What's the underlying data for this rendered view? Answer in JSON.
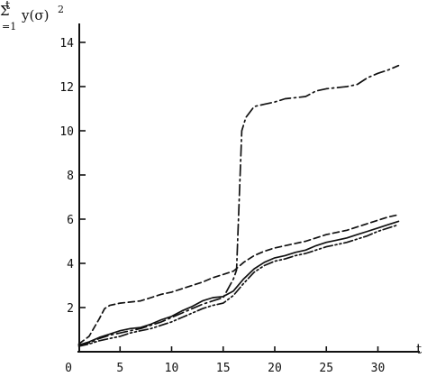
{
  "chart_data": {
    "type": "line",
    "ylabel_prefix": "Σ",
    "ylabel_sup": "t",
    "ylabel_sub": "=1",
    "ylabel_main": "y(σ)",
    "ylabel_exp": "2",
    "xlabel": "t",
    "xlim": [
      0,
      33
    ],
    "ylim": [
      0,
      14.8
    ],
    "xticks": [
      0,
      5,
      10,
      15,
      20,
      25,
      30
    ],
    "yticks": [
      2,
      4,
      6,
      8,
      10,
      12,
      14
    ],
    "grid": false,
    "series": [
      {
        "dash": "solid",
        "x": [
          1,
          2,
          3,
          4,
          5,
          6,
          7,
          8,
          9,
          10,
          11,
          12,
          13,
          14,
          15,
          16,
          17,
          18,
          19,
          20,
          21,
          22,
          23,
          24,
          25,
          26,
          27,
          28,
          29,
          30,
          31,
          32
        ],
        "y": [
          0.3,
          0.45,
          0.65,
          0.8,
          0.95,
          1.05,
          1.1,
          1.25,
          1.45,
          1.6,
          1.85,
          2.05,
          2.3,
          2.45,
          2.5,
          2.75,
          3.3,
          3.75,
          4.05,
          4.25,
          4.35,
          4.5,
          4.6,
          4.8,
          4.95,
          5.05,
          5.15,
          5.3,
          5.45,
          5.6,
          5.75,
          5.9
        ]
      },
      {
        "dash": "dashed",
        "x": [
          1,
          2,
          3,
          3.5,
          4,
          5,
          6,
          7,
          8,
          9,
          10,
          11,
          12,
          13,
          14,
          15,
          16,
          17,
          18,
          19,
          20,
          21,
          22,
          23,
          24,
          25,
          26,
          27,
          28,
          29,
          30,
          31,
          32
        ],
        "y": [
          0.35,
          0.7,
          1.5,
          1.95,
          2.1,
          2.2,
          2.25,
          2.3,
          2.45,
          2.6,
          2.7,
          2.85,
          3.0,
          3.15,
          3.35,
          3.5,
          3.65,
          4.05,
          4.35,
          4.55,
          4.7,
          4.8,
          4.9,
          5.0,
          5.15,
          5.3,
          5.4,
          5.5,
          5.65,
          5.8,
          5.95,
          6.1,
          6.2
        ]
      },
      {
        "dash": "dash-dot",
        "x": [
          1,
          2,
          3,
          4,
          5,
          6,
          7,
          8,
          9,
          10,
          11,
          12,
          13,
          14,
          15,
          16,
          16.3,
          16.8,
          17.2,
          18,
          19,
          20,
          21,
          22,
          23,
          24,
          25,
          26,
          27,
          28,
          29,
          30,
          31,
          32
        ],
        "y": [
          0.3,
          0.4,
          0.6,
          0.75,
          0.85,
          0.95,
          1.05,
          1.2,
          1.35,
          1.55,
          1.75,
          1.95,
          2.15,
          2.3,
          2.45,
          3.3,
          3.7,
          10.0,
          10.6,
          11.1,
          11.2,
          11.3,
          11.45,
          11.5,
          11.55,
          11.8,
          11.9,
          11.95,
          12.0,
          12.1,
          12.4,
          12.6,
          12.75,
          12.95
        ]
      },
      {
        "dash": "dash-dot-dot",
        "x": [
          1,
          2,
          3,
          4,
          5,
          6,
          7,
          8,
          9,
          10,
          11,
          12,
          13,
          14,
          15,
          16,
          17,
          18,
          19,
          20,
          21,
          22,
          23,
          24,
          25,
          26,
          27,
          28,
          29,
          30,
          31,
          32
        ],
        "y": [
          0.25,
          0.35,
          0.5,
          0.6,
          0.7,
          0.85,
          0.95,
          1.05,
          1.2,
          1.35,
          1.55,
          1.75,
          1.95,
          2.1,
          2.2,
          2.55,
          3.1,
          3.6,
          3.9,
          4.1,
          4.2,
          4.35,
          4.45,
          4.6,
          4.75,
          4.85,
          4.95,
          5.1,
          5.25,
          5.45,
          5.6,
          5.75
        ]
      }
    ]
  }
}
